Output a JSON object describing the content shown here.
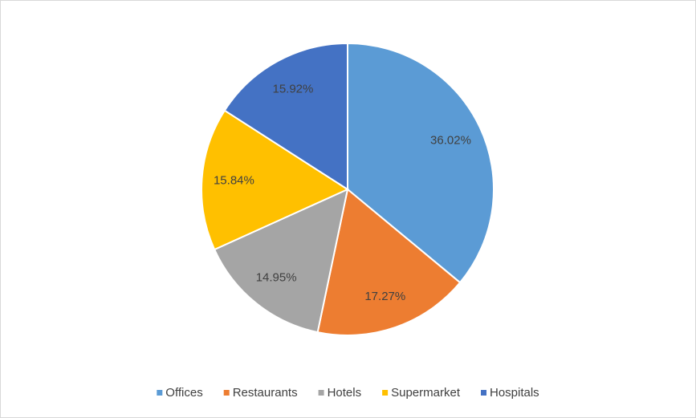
{
  "chart_data": {
    "type": "pie",
    "categories": [
      "Offices",
      "Restaurants",
      "Hotels",
      "Supermarket",
      "Hospitals"
    ],
    "values": [
      36.02,
      17.27,
      14.95,
      15.84,
      15.92
    ],
    "value_labels": [
      "36.02%",
      "17.27%",
      "14.95%",
      "15.84%",
      "15.92%"
    ],
    "colors": [
      "#5b9bd5",
      "#ed7d31",
      "#a5a5a5",
      "#ffc000",
      "#4472c4"
    ],
    "legend": "bottom"
  }
}
